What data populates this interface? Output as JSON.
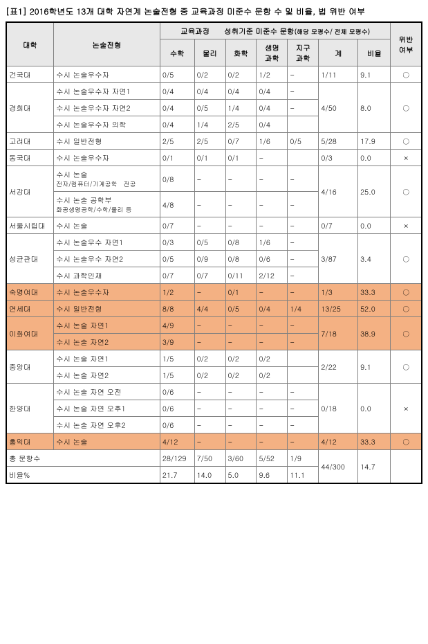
{
  "title": "[표1] 2016학년도 13개 대학 자연계 논술전형 중 교육과정 미준수 문항 수 및 비율, 법 위반 여부",
  "headers": {
    "univ": "대학",
    "type": "논술전형",
    "group": "교육과정　　성취기준 미준수 문항",
    "group_note": "(해당 모평수/ 전체 모평수)",
    "math": "수학",
    "phys": "물리",
    "chem": "화학",
    "bio": "생명\n과학",
    "earth": "지구\n과학",
    "total": "계",
    "ratio": "비율",
    "viol": "위반\n여부"
  },
  "footer": {
    "total_label": "총 문항수",
    "ratio_label": "비율%"
  },
  "rows": [
    {
      "univ": "건국대",
      "type": "수시 논술우수자",
      "math": "0/5",
      "phys": "0/2",
      "chem": "0/2",
      "bio": "1/2",
      "earth": "-",
      "total": "1/11",
      "ratio": "9.1",
      "viol": "○"
    },
    {
      "univ": "경희대",
      "type": "수시 논술우수자 자연1",
      "math": "0/4",
      "phys": "0/4",
      "chem": "0/4",
      "bio": "0/4",
      "earth": "-",
      "total": "4/50",
      "ratio": "8.0",
      "viol": "○",
      "group": 3
    },
    {
      "type": "수시 논술우수자 자연2",
      "math": "0/4",
      "phys": "0/5",
      "chem": "1/4",
      "bio": "0/4",
      "earth": "-"
    },
    {
      "type": "수시 논술우수자 의학",
      "math": "0/4",
      "phys": "1/4",
      "chem": "2/5",
      "bio": "0/4",
      "earth": ""
    },
    {
      "univ": "고려대",
      "type": "수시 일반전형",
      "math": "2/5",
      "phys": "2/5",
      "chem": "0/7",
      "bio": "1/6",
      "earth": "0/5",
      "total": "5/28",
      "ratio": "17.9",
      "viol": "○"
    },
    {
      "univ": "동국대",
      "type": "수시 논술우수자",
      "math": "0/1",
      "phys": "0/1",
      "chem": "0/1",
      "bio": "-",
      "earth": "",
      "total": "0/3",
      "ratio": "0.0",
      "viol": "×"
    },
    {
      "univ": "서강대",
      "type": "수시 논술",
      "type_note": "전자/컴퓨터/기계공학　전공",
      "math": "0/8",
      "phys": "-",
      "chem": "-",
      "bio": "-",
      "earth": "-",
      "total": "4/16",
      "ratio": "25.0",
      "viol": "○",
      "group": 2
    },
    {
      "type": "수시 논술 공학부",
      "type_note": "화공생명공학/수학/물리 등",
      "math": "4/8",
      "phys": "-",
      "chem": "-",
      "bio": "-",
      "earth": "-"
    },
    {
      "univ": "서울시립대",
      "type": "수시 논술",
      "math": "0/7",
      "phys": "-",
      "chem": "-",
      "bio": "-",
      "earth": "-",
      "total": "0/7",
      "ratio": "0.0",
      "viol": "×"
    },
    {
      "univ": "성균관대",
      "type": "수시 논술우수 자연1",
      "math": "0/3",
      "phys": "0/5",
      "chem": "0/8",
      "bio": "1/6",
      "earth": "-",
      "total": "3/87",
      "ratio": "3.4",
      "viol": "○",
      "group": 3
    },
    {
      "type": "수시 논술우수 자연2",
      "math": "0/5",
      "phys": "0/9",
      "chem": "0/8",
      "bio": "0/6",
      "earth": "-"
    },
    {
      "type": "수시 과학인재",
      "math": "0/7",
      "phys": "0/7",
      "chem": "0/11",
      "bio": "2/12",
      "earth": "-"
    },
    {
      "univ": "숙명여대",
      "type": "수시 논술우수자",
      "math": "1/2",
      "phys": "-",
      "chem": "0/1",
      "bio": "-",
      "earth": "-",
      "total": "1/3",
      "ratio": "33.3",
      "viol": "○",
      "hl": true
    },
    {
      "univ": "연세대",
      "type": "수시 일반전형",
      "math": "8/8",
      "phys": "4/4",
      "chem": "0/5",
      "bio": "0/4",
      "earth": "1/4",
      "total": "13/25",
      "ratio": "52.0",
      "viol": "○",
      "hl": true
    },
    {
      "univ": "이화여대",
      "type": "수시 논술 자연1",
      "math": "4/9",
      "phys": "-",
      "chem": "-",
      "bio": "-",
      "earth": "-",
      "total": "7/18",
      "ratio": "38.9",
      "viol": "○",
      "group": 2,
      "hl": true
    },
    {
      "type": "수시 논술 자연2",
      "math": "3/9",
      "phys": "-",
      "chem": "-",
      "bio": "-",
      "earth": "-",
      "hl": true
    },
    {
      "univ": "중앙대",
      "type": "수시 논술 자연1",
      "math": "1/5",
      "phys": "0/2",
      "chem": "0/2",
      "bio": "0/2",
      "earth": "",
      "total": "2/22",
      "ratio": "9.1",
      "viol": "○",
      "group": 2
    },
    {
      "type": "수시 논술 자연2",
      "math": "1/5",
      "phys": "0/2",
      "chem": "0/2",
      "bio": "0/2",
      "earth": ""
    },
    {
      "univ": "한양대",
      "type": "수시 논술 자연 오전",
      "math": "0/6",
      "phys": "-",
      "chem": "-",
      "bio": "-",
      "earth": "-",
      "total": "0/18",
      "ratio": "0.0",
      "viol": "×",
      "group": 3
    },
    {
      "type": "수시 논술 자연 오후1",
      "math": "0/6",
      "phys": "-",
      "chem": "-",
      "bio": "-",
      "earth": "-"
    },
    {
      "type": "수시 논술 자연 오후2",
      "math": "0/6",
      "phys": "-",
      "chem": "-",
      "bio": "-",
      "earth": "-"
    },
    {
      "univ": "홍익대",
      "type": "수시 논술",
      "math": "4/12",
      "phys": "-",
      "chem": "-",
      "bio": "-",
      "earth": "-",
      "total": "4/12",
      "ratio": "33.3",
      "viol": "○",
      "hl": true
    }
  ],
  "totals": {
    "math": "28/129",
    "phys": "7/50",
    "chem": "3/60",
    "bio": "5/52",
    "earth": "1/9",
    "total": "44/300",
    "ratio": "14.7"
  },
  "ratios": {
    "math": "21.7",
    "phys": "14.0",
    "chem": "5.0",
    "bio": "9.6",
    "earth": "11.1"
  },
  "colors": {
    "highlight": "#f4b183",
    "header_bg": "#e8e8e8",
    "border": "#808080"
  }
}
